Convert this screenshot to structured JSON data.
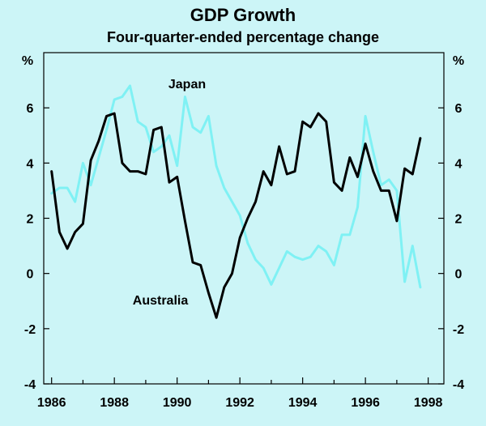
{
  "chart_data": {
    "type": "line",
    "title": "GDP Growth",
    "subtitle": "Four-quarter-ended percentage change",
    "ylabel_left": "%",
    "ylabel_right": "%",
    "ylim": [
      -4,
      8
    ],
    "xlim": [
      1985.75,
      1998.5
    ],
    "yticks": [
      -4,
      -2,
      0,
      2,
      4,
      6
    ],
    "xticks": [
      1986,
      1988,
      1990,
      1992,
      1994,
      1996,
      1998
    ],
    "grid": false,
    "series": [
      {
        "name": "Japan",
        "color": "#7ff1f4",
        "x": [
          1986.0,
          1986.25,
          1986.5,
          1986.75,
          1987.0,
          1987.25,
          1987.5,
          1987.75,
          1988.0,
          1988.25,
          1988.5,
          1988.75,
          1989.0,
          1989.25,
          1989.5,
          1989.75,
          1990.0,
          1990.25,
          1990.5,
          1990.75,
          1991.0,
          1991.25,
          1991.5,
          1991.75,
          1992.0,
          1992.25,
          1992.5,
          1992.75,
          1993.0,
          1993.25,
          1993.5,
          1993.75,
          1994.0,
          1994.25,
          1994.5,
          1994.75,
          1995.0,
          1995.25,
          1995.5,
          1995.75,
          1996.0,
          1996.25,
          1996.5,
          1996.75,
          1997.0,
          1997.25,
          1997.5,
          1997.75
        ],
        "values": [
          2.9,
          3.1,
          3.1,
          2.6,
          4.0,
          3.2,
          4.2,
          5.2,
          6.3,
          6.4,
          6.8,
          5.5,
          5.3,
          4.4,
          4.6,
          5.0,
          3.9,
          6.4,
          5.3,
          5.1,
          5.7,
          3.9,
          3.1,
          2.6,
          2.1,
          1.1,
          0.5,
          0.2,
          -0.4,
          0.2,
          0.8,
          0.6,
          0.5,
          0.6,
          1.0,
          0.8,
          0.3,
          1.4,
          1.4,
          2.4,
          5.7,
          4.4,
          3.2,
          3.4,
          3.0,
          -0.3,
          1.0,
          -0.5
        ]
      },
      {
        "name": "Australia",
        "color": "#000000",
        "x": [
          1986.0,
          1986.25,
          1986.5,
          1986.75,
          1987.0,
          1987.25,
          1987.5,
          1987.75,
          1988.0,
          1988.25,
          1988.5,
          1988.75,
          1989.0,
          1989.25,
          1989.5,
          1989.75,
          1990.0,
          1990.25,
          1990.5,
          1990.75,
          1991.0,
          1991.25,
          1991.5,
          1991.75,
          1992.0,
          1992.25,
          1992.5,
          1992.75,
          1993.0,
          1993.25,
          1993.5,
          1993.75,
          1994.0,
          1994.25,
          1994.5,
          1994.75,
          1995.0,
          1995.25,
          1995.5,
          1995.75,
          1996.0,
          1996.25,
          1996.5,
          1996.75,
          1997.0,
          1997.25,
          1997.5,
          1997.75
        ],
        "values": [
          3.7,
          1.5,
          0.9,
          1.5,
          1.8,
          4.1,
          4.8,
          5.7,
          5.8,
          4.0,
          3.7,
          3.7,
          3.6,
          5.2,
          5.3,
          3.3,
          3.5,
          1.9,
          0.4,
          0.3,
          -0.7,
          -1.6,
          -0.5,
          0.0,
          1.3,
          2.0,
          2.6,
          3.7,
          3.2,
          4.6,
          3.6,
          3.7,
          5.5,
          5.3,
          5.8,
          5.5,
          3.3,
          3.0,
          4.2,
          3.5,
          4.7,
          3.7,
          3.0,
          3.0,
          1.9,
          3.8,
          3.6,
          4.9
        ]
      }
    ],
    "annotations": [
      {
        "text": "Japan",
        "series": "Japan"
      },
      {
        "text": "Australia",
        "series": "Australia"
      }
    ]
  }
}
